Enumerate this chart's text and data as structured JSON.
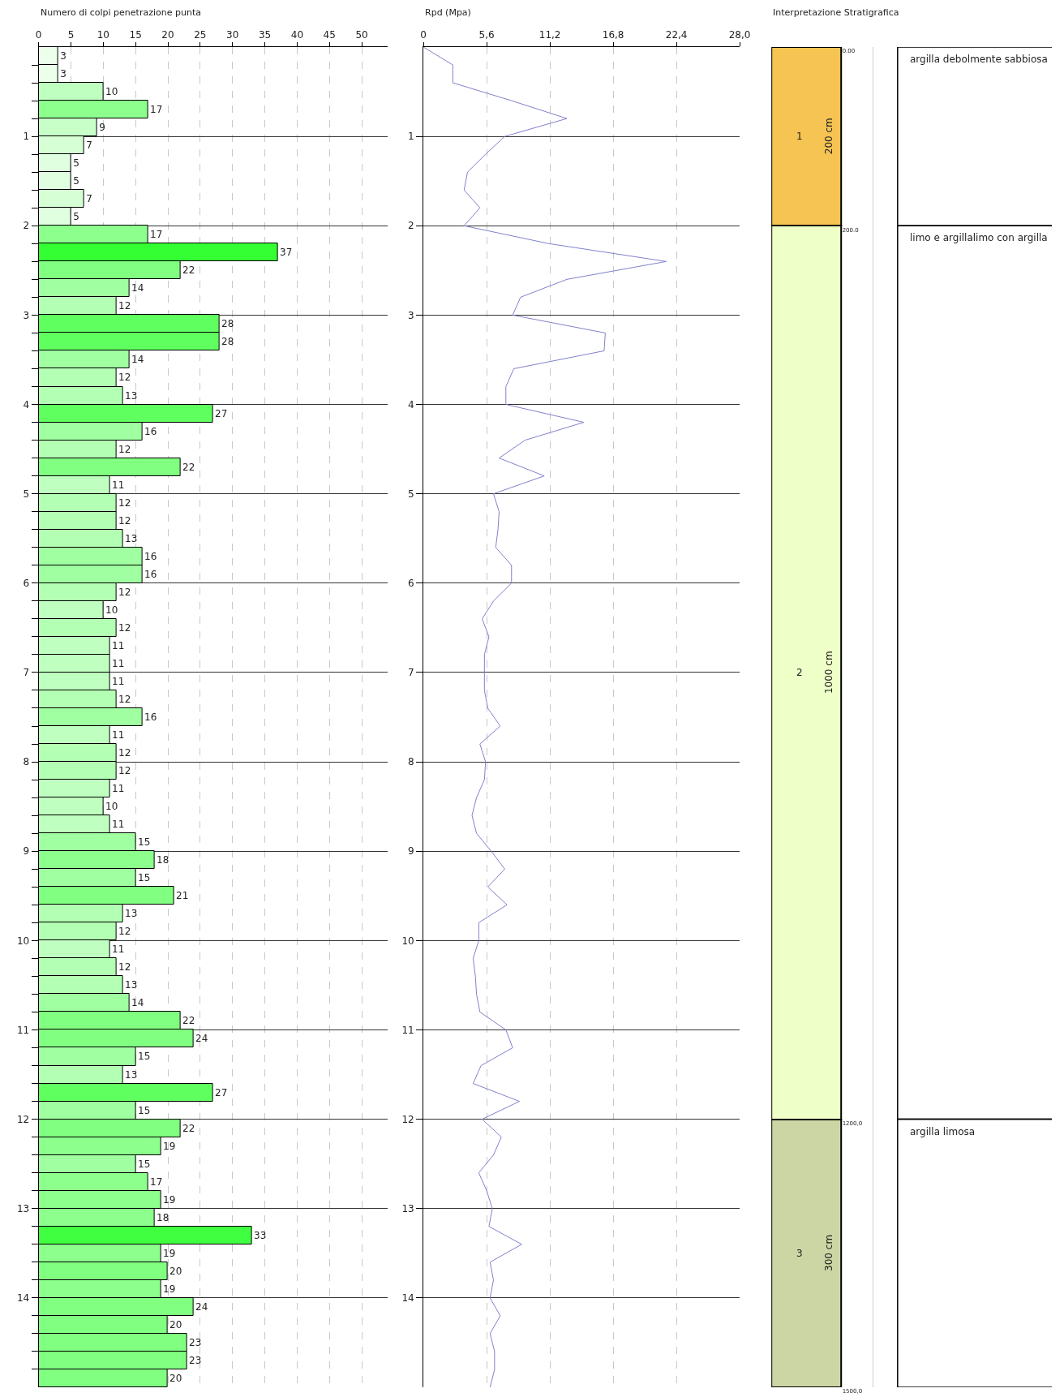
{
  "chart_data": [
    {
      "type": "bar",
      "orientation": "horizontal",
      "title": "Numero di colpi penetrazione punta",
      "x": [
        0.1,
        0.3,
        0.5,
        0.7,
        0.9,
        1.1,
        1.3,
        1.5,
        1.7,
        1.9,
        2.1,
        2.3,
        2.5,
        2.7,
        2.9,
        3.1,
        3.3,
        3.5,
        3.7,
        3.9,
        4.1,
        4.3,
        4.5,
        4.7,
        4.9,
        5.1,
        5.3,
        5.5,
        5.7,
        5.9,
        6.1,
        6.3,
        6.5,
        6.7,
        6.9,
        7.1,
        7.3,
        7.5,
        7.7,
        7.9,
        8.1,
        8.3,
        8.5,
        8.7,
        8.9,
        9.1,
        9.3,
        9.5,
        9.7,
        9.9,
        10.1,
        10.3,
        10.5,
        10.7,
        10.9,
        11.1,
        11.3,
        11.5,
        11.7,
        11.9,
        12.1,
        12.3,
        12.5,
        12.7,
        12.9,
        13.1,
        13.3,
        13.5,
        13.7,
        13.9,
        14.1,
        14.3,
        14.5,
        14.7,
        14.9
      ],
      "values": [
        3,
        3,
        10,
        17,
        9,
        7,
        5,
        5,
        7,
        5,
        17,
        37,
        22,
        14,
        12,
        28,
        28,
        14,
        12,
        13,
        27,
        16,
        12,
        22,
        11,
        12,
        12,
        13,
        16,
        16,
        12,
        10,
        12,
        11,
        11,
        11,
        12,
        16,
        11,
        12,
        12,
        11,
        10,
        11,
        15,
        18,
        15,
        21,
        13,
        12,
        11,
        12,
        13,
        14,
        22,
        24,
        15,
        13,
        27,
        15,
        22,
        19,
        15,
        17,
        19,
        18,
        33,
        19,
        20,
        19,
        24,
        20,
        23,
        23,
        20
      ],
      "colors": [
        "#ebffeb",
        "#ebffeb",
        "#bfffbf",
        "#8cff8c",
        "#c8ffc8",
        "#d6ffd6",
        "#e0ffe0",
        "#e0ffe0",
        "#d6ffd6",
        "#e0ffe0",
        "#8cff8c",
        "#33ff33",
        "#80ff80",
        "#a0ffa0",
        "#b3ffb3",
        "#60ff60",
        "#60ff60",
        "#a0ffa0",
        "#b3ffb3",
        "#b3ffb3",
        "#60ff60",
        "#a0ffa0",
        "#b3ffb3",
        "#80ff80",
        "#bfffbf",
        "#b3ffb3",
        "#b3ffb3",
        "#b3ffb3",
        "#a0ffa0",
        "#a0ffa0",
        "#b3ffb3",
        "#bfffbf",
        "#b3ffb3",
        "#bfffbf",
        "#bfffbf",
        "#bfffbf",
        "#b3ffb3",
        "#a0ffa0",
        "#bfffbf",
        "#b3ffb3",
        "#b3ffb3",
        "#bfffbf",
        "#bfffbf",
        "#bfffbf",
        "#a0ffa0",
        "#8cff8c",
        "#a0ffa0",
        "#80ff80",
        "#b3ffb3",
        "#b3ffb3",
        "#bfffbf",
        "#b3ffb3",
        "#b3ffb3",
        "#a0ffa0",
        "#80ff80",
        "#80ff80",
        "#a0ffa0",
        "#b3ffb3",
        "#60ff60",
        "#a0ffa0",
        "#80ff80",
        "#8cff8c",
        "#a0ffa0",
        "#8cff8c",
        "#8cff8c",
        "#8cff8c",
        "#40ff40",
        "#8cff8c",
        "#80ff80",
        "#8cff8c",
        "#80ff80",
        "#80ff80",
        "#80ff80",
        "#80ff80",
        "#80ff80"
      ],
      "data_labels": true,
      "xlim": [
        0,
        54
      ],
      "xticks": [
        0,
        5,
        10,
        15,
        20,
        25,
        30,
        35,
        40,
        45,
        50
      ],
      "ylim": [
        15,
        0
      ],
      "yticks": [
        1,
        2,
        3,
        4,
        5,
        6,
        7,
        8,
        9,
        10,
        11,
        12,
        13,
        14,
        {
          "value": 0.2,
          "label": null
        },
        {
          "value": 0.4,
          "label": null
        },
        {
          "value": 0.6,
          "label": null
        },
        {
          "value": 0.8,
          "label": null
        },
        {
          "value": 1.2,
          "label": null
        },
        {
          "value": 1.4,
          "label": null
        },
        {
          "value": 1.6,
          "label": null
        },
        {
          "value": 1.8,
          "label": null
        },
        {
          "value": 2.2,
          "label": null
        },
        {
          "value": 2.4,
          "label": null
        },
        {
          "value": 2.6,
          "label": null
        },
        {
          "value": 2.8,
          "label": null
        },
        {
          "value": 3.2,
          "label": null
        },
        {
          "value": 3.4,
          "label": null
        },
        {
          "value": 3.6,
          "label": null
        },
        {
          "value": 3.8,
          "label": null
        },
        {
          "value": 4.2,
          "label": null
        },
        {
          "value": 4.4,
          "label": null
        },
        {
          "value": 4.6,
          "label": null
        },
        {
          "value": 4.8,
          "label": null
        },
        {
          "value": 5.2,
          "label": null
        },
        {
          "value": 5.4,
          "label": null
        },
        {
          "value": 5.6,
          "label": null
        },
        {
          "value": 5.8,
          "label": null
        },
        {
          "value": 6.2,
          "label": null
        },
        {
          "value": 6.4,
          "label": null
        },
        {
          "value": 6.6,
          "label": null
        },
        {
          "value": 6.8,
          "label": null
        },
        {
          "value": 7.2,
          "label": null
        },
        {
          "value": 7.4,
          "label": null
        },
        {
          "value": 7.6,
          "label": null
        },
        {
          "value": 7.8,
          "label": null
        },
        {
          "value": 8.2,
          "label": null
        },
        {
          "value": 8.4,
          "label": null
        },
        {
          "value": 8.6,
          "label": null
        },
        {
          "value": 8.8,
          "label": null
        },
        {
          "value": 9.2,
          "label": null
        },
        {
          "value": 9.4,
          "label": null
        },
        {
          "value": 9.6,
          "label": null
        },
        {
          "value": 9.8,
          "label": null
        },
        {
          "value": 10.2,
          "label": null
        },
        {
          "value": 10.4,
          "label": null
        },
        {
          "value": 10.6,
          "label": null
        },
        {
          "value": 10.8,
          "label": null
        },
        {
          "value": 11.2,
          "label": null
        },
        {
          "value": 11.4,
          "label": null
        },
        {
          "value": 11.6,
          "label": null
        },
        {
          "value": 11.8,
          "label": null
        },
        {
          "value": 12.2,
          "label": null
        },
        {
          "value": 12.4,
          "label": null
        },
        {
          "value": 12.6,
          "label": null
        },
        {
          "value": 12.8,
          "label": null
        },
        {
          "value": 13.2,
          "label": null
        },
        {
          "value": 13.4,
          "label": null
        },
        {
          "value": 13.6,
          "label": null
        },
        {
          "value": 13.8,
          "label": null
        },
        {
          "value": 14.2,
          "label": null
        },
        {
          "value": 14.4,
          "label": null
        },
        {
          "value": 14.6,
          "label": null
        },
        {
          "value": 14.8,
          "label": null
        }
      ],
      "grid": true
    },
    {
      "type": "line",
      "orientation": "horizontal",
      "title": "Rpd (Mpa)",
      "color": "#8080cc",
      "x": [
        0,
        0.2,
        0.4,
        0.6,
        0.8,
        1.0,
        1.2,
        1.4,
        1.6,
        1.8,
        2.0,
        2.2,
        2.4,
        2.6,
        2.8,
        3.0,
        3.2,
        3.4,
        3.6,
        3.8,
        4.0,
        4.2,
        4.4,
        4.6,
        4.8,
        5.0,
        5.2,
        5.4,
        5.6,
        5.8,
        6.0,
        6.2,
        6.4,
        6.6,
        6.8,
        7.0,
        7.2,
        7.4,
        7.6,
        7.8,
        8.0,
        8.2,
        8.4,
        8.6,
        8.8,
        9.0,
        9.2,
        9.4,
        9.6,
        9.8,
        10.0,
        10.2,
        10.4,
        10.6,
        10.8,
        11.0,
        11.2,
        11.4,
        11.6,
        11.8,
        12.0,
        12.2,
        12.4,
        12.6,
        12.8,
        13.0,
        13.2,
        13.4,
        13.6,
        13.8,
        14.0,
        14.2,
        14.4,
        14.6,
        14.8,
        15.0
      ],
      "values": [
        0,
        2.6,
        2.6,
        7.8,
        12.7,
        7.2,
        5.5,
        3.9,
        3.6,
        5.0,
        3.6,
        11.1,
        21.5,
        12.7,
        8.6,
        7.9,
        16.1,
        16.0,
        8.0,
        7.3,
        7.3,
        14.2,
        9.0,
        6.7,
        10.7,
        6.2,
        6.7,
        6.6,
        6.4,
        7.8,
        7.8,
        6.2,
        5.2,
        5.8,
        5.4,
        5.4,
        5.4,
        5.7,
        6.8,
        5.0,
        5.5,
        5.4,
        4.7,
        4.3,
        4.7,
        6.0,
        7.2,
        5.7,
        7.4,
        4.9,
        4.9,
        4.4,
        4.6,
        4.7,
        5.0,
        7.3,
        7.9,
        5.1,
        4.4,
        8.5,
        5.2,
        6.9,
        6.2,
        4.9,
        5.6,
        6.1,
        5.8,
        8.7,
        5.9,
        6.2,
        5.9,
        6.8,
        5.9,
        6.3,
        6.3,
        5.9
      ],
      "xlim": [
        0,
        28
      ],
      "xticks": [
        0,
        {
          "value": 5.6,
          "label": "5,6"
        },
        {
          "value": 11.2,
          "label": "11,2"
        },
        {
          "value": 16.8,
          "label": "16,8"
        },
        {
          "value": 22.4,
          "label": "22,4"
        },
        {
          "value": 28,
          "label": "28,0"
        }
      ],
      "ylim": [
        15,
        0
      ],
      "yticks": [
        1,
        2,
        3,
        4,
        5,
        6,
        7,
        8,
        9,
        10,
        11,
        12,
        13,
        14
      ],
      "grid": true
    },
    {
      "type": "bar",
      "stacked": true,
      "title": "Interpretazione Stratigrafica",
      "categories": [
        null
      ],
      "series": [
        {
          "name": "argilla debolmente sabbiosa",
          "color": "#f5c452",
          "values": [
            200
          ],
          "value_labels": [
            "200 cm"
          ]
        },
        {
          "name": "limo e argillalimo con argilla",
          "color": "#eeffc8",
          "values": [
            1000
          ],
          "value_labels": [
            "1000 cm"
          ]
        },
        {
          "name": "argilla limosa",
          "color": "#ccd6a4",
          "values": [
            300
          ],
          "value_labels": [
            "300 cm"
          ]
        }
      ],
      "ylim": [
        1500,
        0
      ],
      "yticks": [
        {
          "value": 0,
          "label": "0.00"
        },
        {
          "value": 200,
          "label": "200.0"
        },
        {
          "value": 1200,
          "label": "1200,0"
        },
        {
          "value": 1500,
          "label": "1500,0"
        }
      ],
      "annotations": [
        "1",
        "2",
        "3"
      ]
    }
  ]
}
